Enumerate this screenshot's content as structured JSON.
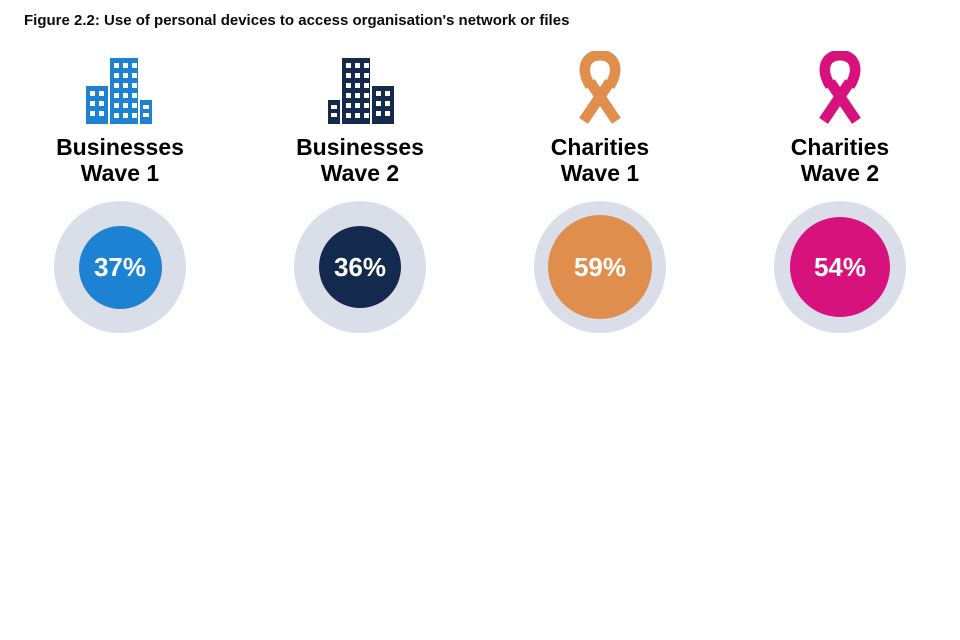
{
  "figure": {
    "title": "Figure 2.2: Use of personal devices to access organisation's network or files"
  },
  "chart_data": {
    "type": "bar",
    "variant": "pictogram-bubble",
    "title": "Figure 2.2: Use of personal devices to access organisation's network or files",
    "categories": [
      "Businesses Wave 1",
      "Businesses Wave 2",
      "Charities Wave 1",
      "Charities Wave 2"
    ],
    "values": [
      37,
      36,
      59,
      54
    ],
    "unit": "%",
    "value_labels": [
      "37%",
      "36%",
      "59%",
      "54%"
    ],
    "legend": "none",
    "axes": "none",
    "series_colors": [
      "#1d82d2",
      "#14294e",
      "#e08e4e",
      "#d8127d"
    ],
    "layout_hint": "four columns: icon above two-line category label above value bubble; bubble area scales with value"
  },
  "groups": [
    {
      "label_line1": "Businesses",
      "label_line2": "Wave 1",
      "value": 37,
      "display": "37%",
      "color": "#1d82d2",
      "icon": "building-icon"
    },
    {
      "label_line1": "Businesses",
      "label_line2": "Wave 2",
      "value": 36,
      "display": "36%",
      "color": "#14294e",
      "icon": "building-icon"
    },
    {
      "label_line1": "Charities",
      "label_line2": "Wave 1",
      "value": 59,
      "display": "59%",
      "color": "#e08e4e",
      "icon": "ribbon-icon"
    },
    {
      "label_line1": "Charities",
      "label_line2": "Wave 2",
      "value": 54,
      "display": "54%",
      "color": "#d8127d",
      "icon": "ribbon-icon"
    }
  ],
  "style": {
    "ring_color": "#dadee9",
    "background": "#ffffff",
    "text_color": "#000000",
    "value_text_color": "#ffffff"
  }
}
